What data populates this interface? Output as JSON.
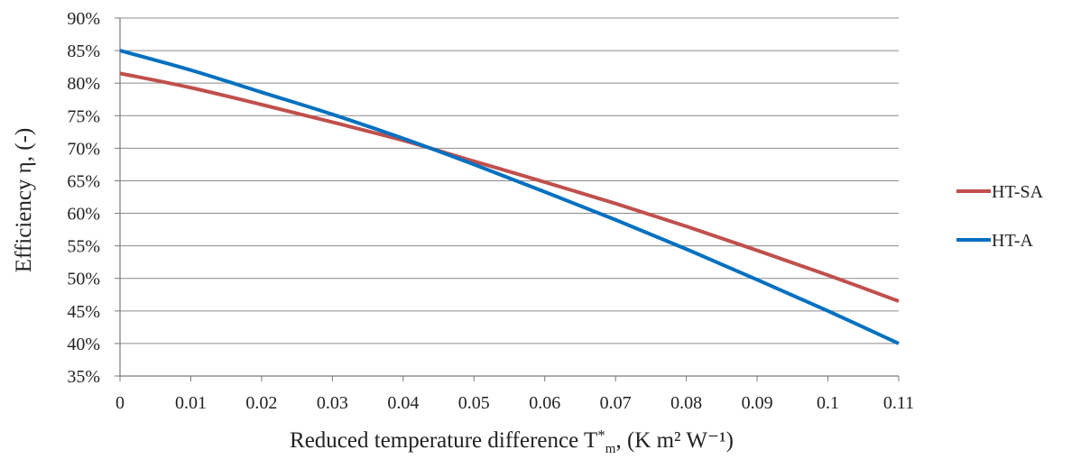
{
  "chart_data": {
    "type": "line",
    "xlabel_main": "Reduced temperature difference T",
    "xlabel_sup": "*",
    "xlabel_sub": "m",
    "xlabel_units": ", (K m² W⁻¹)",
    "ylabel": "Efficiency η, (-)",
    "xlim": [
      0,
      0.11
    ],
    "ylim": [
      0.35,
      0.9
    ],
    "x_ticks": [
      "0",
      "0.01",
      "0.02",
      "0.03",
      "0.04",
      "0.05",
      "0.06",
      "0.07",
      "0.08",
      "0.09",
      "0.1",
      "0.11"
    ],
    "y_ticks": [
      "35%",
      "40%",
      "45%",
      "50%",
      "55%",
      "60%",
      "65%",
      "70%",
      "75%",
      "80%",
      "85%",
      "90%"
    ],
    "grid": "horizontal",
    "legend_position": "right",
    "x": [
      0,
      0.01,
      0.02,
      0.03,
      0.04,
      0.05,
      0.06,
      0.07,
      0.08,
      0.09,
      0.1,
      0.11
    ],
    "series": [
      {
        "name": "HT-SA",
        "color": "#c0504d",
        "values": [
          0.815,
          0.793,
          0.767,
          0.74,
          0.712,
          0.68,
          0.648,
          0.615,
          0.58,
          0.543,
          0.505,
          0.465
        ]
      },
      {
        "name": "HT-A",
        "color": "#0070c0",
        "values": [
          0.85,
          0.82,
          0.786,
          0.752,
          0.715,
          0.675,
          0.633,
          0.59,
          0.545,
          0.498,
          0.45,
          0.4
        ]
      }
    ]
  }
}
